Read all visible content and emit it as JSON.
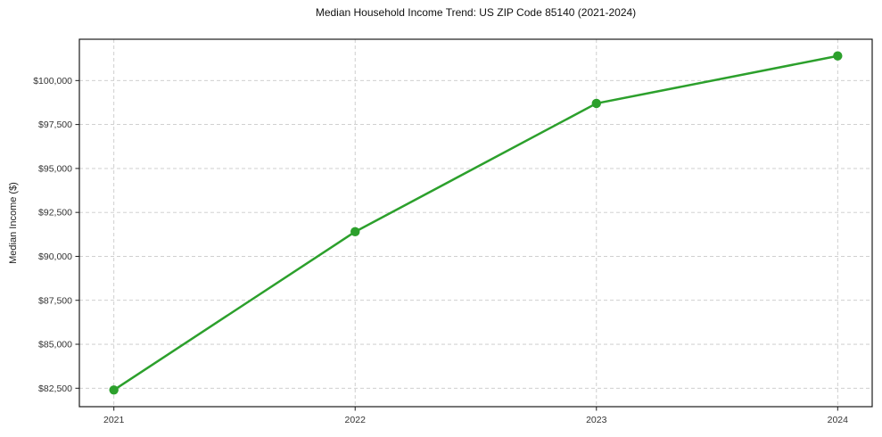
{
  "chart_data": {
    "type": "line",
    "title": "Median Household Income Trend: US ZIP Code 85140 (2021-2024)",
    "xlabel": "",
    "ylabel": "Median Income ($)",
    "categories": [
      "2021",
      "2022",
      "2023",
      "2024"
    ],
    "x": [
      2021,
      2022,
      2023,
      2024
    ],
    "series": [
      {
        "name": "Median Household Income",
        "values": [
          82400,
          91400,
          98700,
          101400
        ],
        "color": "#2ca02c",
        "marker": "circle"
      }
    ],
    "x_tick_labels": [
      "2021",
      "2022",
      "2023",
      "2024"
    ],
    "y_ticks": [
      82500,
      85000,
      87500,
      90000,
      92500,
      95000,
      97500,
      100000
    ],
    "y_tick_labels": [
      "$82,500",
      "$85,000",
      "$87,500",
      "$90,000",
      "$92,500",
      "$95,000",
      "$97,500",
      "$100,000"
    ],
    "xlim": [
      2020.857,
      2024.143
    ],
    "ylim": [
      81450,
      102350
    ],
    "grid": true,
    "grid_style": "dashed",
    "legend": "none"
  },
  "colors": {
    "line": "#2ca02c",
    "marker": "#2ca02c",
    "grid": "#c9c9c9",
    "spine": "#1a1a1a",
    "tick": "#1a1a1a",
    "tick_label": "#333333",
    "background": "#ffffff"
  }
}
